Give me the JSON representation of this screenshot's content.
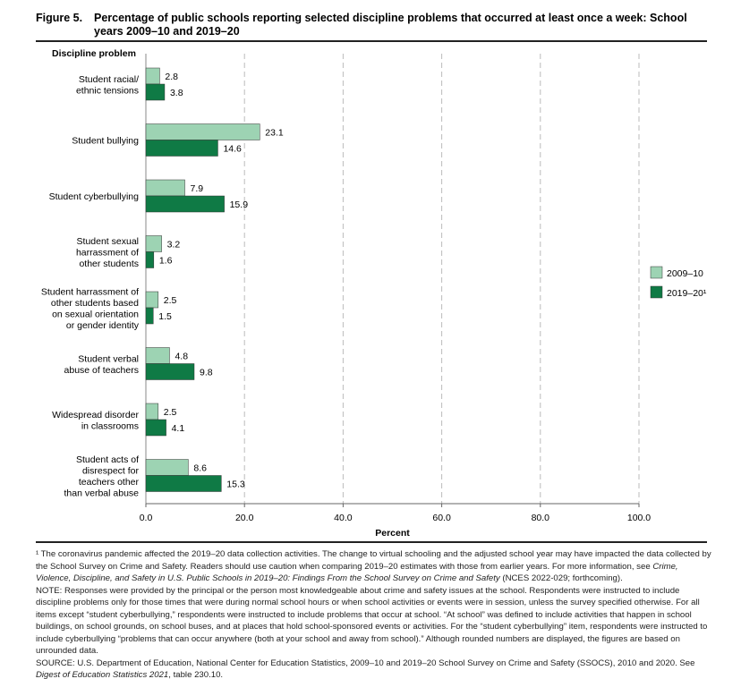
{
  "figure_number": "Figure 5.",
  "title": "Percentage of public schools reporting selected discipline problems that occurred at least once a week: School years 2009–10 and 2019–20",
  "chart_data": {
    "type": "bar",
    "orientation": "horizontal",
    "ylabel": "Discipline problem",
    "xlabel": "Percent",
    "xlim": [
      0,
      100
    ],
    "xticks": [
      0,
      20,
      40,
      60,
      80,
      100
    ],
    "xtick_labels": [
      "0.0",
      "20.0",
      "40.0",
      "60.0",
      "80.0",
      "100.0"
    ],
    "grid": "vertical dashed",
    "legend_position": "right",
    "categories": [
      [
        "Student racial/",
        "ethnic tensions"
      ],
      [
        "Student bullying"
      ],
      [
        "Student cyberbullying"
      ],
      [
        "Student sexual",
        "harrassment of",
        "other students"
      ],
      [
        "Student harrassment of",
        "other students based",
        "on sexual orientation",
        "or gender identity"
      ],
      [
        "Student verbal",
        "abuse of teachers"
      ],
      [
        "Widespread disorder",
        "in classrooms"
      ],
      [
        "Student acts of",
        "disrespect for",
        "teachers other",
        "than verbal abuse"
      ]
    ],
    "series": [
      {
        "name": "2009–10",
        "color": "#9dd3b3",
        "values": [
          2.8,
          23.1,
          7.9,
          3.2,
          2.5,
          4.8,
          2.5,
          8.6
        ],
        "labels": [
          "2.8",
          "23.1",
          "7.9",
          "3.2",
          "2.5",
          "4.8",
          "2.5",
          "8.6"
        ]
      },
      {
        "name": "2019–20¹",
        "color": "#0f7a45",
        "values": [
          3.8,
          14.6,
          15.9,
          1.6,
          1.5,
          9.8,
          4.1,
          15.3
        ],
        "labels": [
          "3.8",
          "14.6",
          "15.9",
          "1.6",
          "1.5",
          "9.8",
          "4.1",
          "15.3"
        ]
      }
    ]
  },
  "notes": {
    "footnote_1a": "¹ The coronavirus pandemic affected the 2019–20 data collection activities. The change to virtual schooling and the adjusted school year may have impacted the data collected by the School Survey on Crime and Safety. Readers should use caution when comparing 2019–20 estimates with those from earlier years. For more information, see ",
    "footnote_1_italic": "Crime, Violence, Discipline, and Safety in U.S. Public Schools in 2019–20: Findings From the School Survey on Crime and Safety",
    "footnote_1b": " (NCES 2022-029; forthcoming).",
    "note": "NOTE: Responses were provided by the principal or the person most knowledgeable about crime and safety issues at the school. Respondents were instructed to include discipline problems only for those times that were during normal school hours or when school activities or events were in session, unless the survey specified otherwise. For all items except “student cyberbullying,” respondents were instructed to include problems that occur at school. “At school” was defined to include activities that happen in school buildings, on school grounds, on school buses, and at places that hold school-sponsored events or activities. For the “student cyberbullying” item, respondents were instructed to include cyberbullying “problems that can occur anywhere (both at your school and away from school).” Although rounded numbers are displayed, the figures are based on unrounded data.",
    "source_a": "SOURCE: U.S. Department of Education, National Center for Education Statistics, 2009–10 and 2019–20 School Survey on Crime and Safety (SSOCS), 2010 and 2020. See ",
    "source_italic": "Digest of Education Statistics 2021",
    "source_b": ", table 230.10."
  }
}
